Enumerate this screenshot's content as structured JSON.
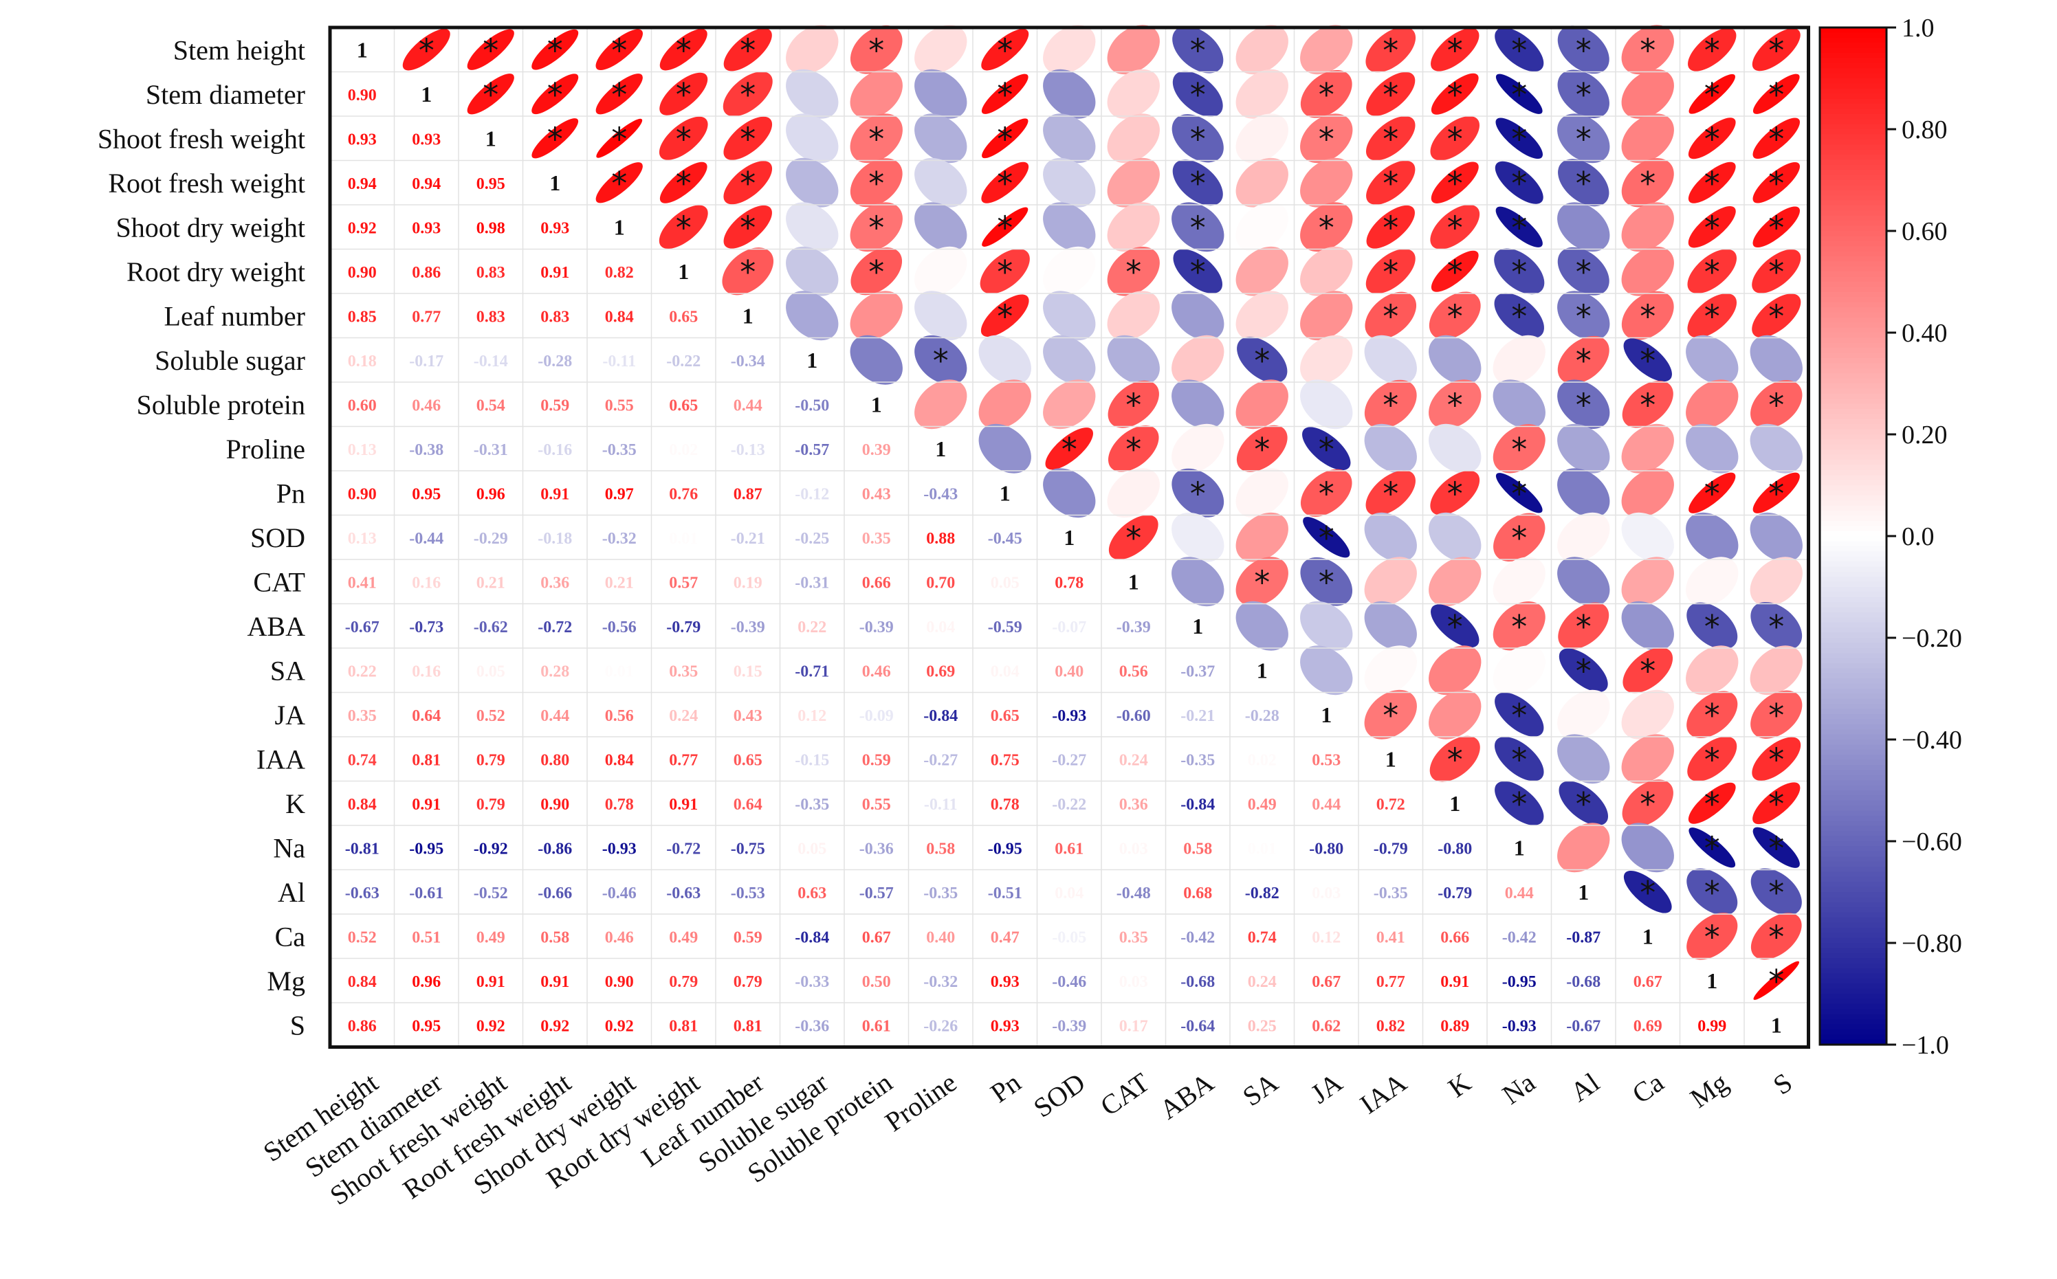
{
  "chart_data": {
    "type": "heatmap",
    "subtype": "correlation-matrix",
    "title": "",
    "variables": [
      "Stem height",
      "Stem diameter",
      "Shoot fresh weight",
      "Root fresh weight",
      "Shoot dry weight",
      "Root dry weight",
      "Leaf number",
      "Soluble sugar",
      "Soluble protein",
      "Proline",
      "Pn",
      "SOD",
      "CAT",
      "ABA",
      "SA",
      "JA",
      "IAA",
      "K",
      "Na",
      "Al",
      "Ca",
      "Mg",
      "S"
    ],
    "lower_triangle": "correlation coefficients shown as numbers",
    "upper_triangle": "ellipses colored by coefficient; asterisk marks significance",
    "diagonal_label": "1",
    "significance_marker": "*",
    "lower_values": [
      [],
      [
        "0.90"
      ],
      [
        "0.93",
        "0.93"
      ],
      [
        "0.94",
        "0.94",
        "0.95"
      ],
      [
        "0.92",
        "0.93",
        "0.98",
        "0.93"
      ],
      [
        "0.90",
        "0.86",
        "0.83",
        "0.91",
        "0.82"
      ],
      [
        "0.85",
        "0.77",
        "0.83",
        "0.83",
        "0.84",
        "0.65"
      ],
      [
        "0.18",
        "-0.17",
        "-0.14",
        "-0.28",
        "-0.11",
        "-0.22",
        "-0.34"
      ],
      [
        "0.60",
        "0.46",
        "0.54",
        "0.59",
        "0.55",
        "0.65",
        "0.44",
        "-0.50"
      ],
      [
        "0.13",
        "-0.38",
        "-0.31",
        "-0.16",
        "-0.35",
        "0.02",
        "-0.13",
        "-0.57",
        "0.39"
      ],
      [
        "0.90",
        "0.95",
        "0.96",
        "0.91",
        "0.97",
        "0.76",
        "0.87",
        "-0.12",
        "0.43",
        "-0.43"
      ],
      [
        "0.13",
        "-0.44",
        "-0.29",
        "-0.18",
        "-0.32",
        "0.01",
        "-0.21",
        "-0.25",
        "0.35",
        "0.88",
        "-0.45"
      ],
      [
        "0.41",
        "0.16",
        "0.21",
        "0.36",
        "0.21",
        "0.57",
        "0.19",
        "-0.31",
        "0.66",
        "0.70",
        "0.05",
        "0.78"
      ],
      [
        "-0.67",
        "-0.73",
        "-0.62",
        "-0.72",
        "-0.56",
        "-0.79",
        "-0.39",
        "0.22",
        "-0.39",
        "0.04",
        "-0.59",
        "-0.07",
        "-0.39"
      ],
      [
        "0.22",
        "0.16",
        "0.05",
        "0.28",
        "0.01",
        "0.35",
        "0.15",
        "-0.71",
        "0.46",
        "0.69",
        "0.04",
        "0.40",
        "0.56",
        "-0.37"
      ],
      [
        "0.35",
        "0.64",
        "0.52",
        "0.44",
        "0.56",
        "0.24",
        "0.43",
        "0.12",
        "-0.09",
        "-0.84",
        "0.65",
        "-0.93",
        "-0.60",
        "-0.21",
        "-0.28"
      ],
      [
        "0.74",
        "0.81",
        "0.79",
        "0.80",
        "0.84",
        "0.77",
        "0.65",
        "-0.15",
        "0.59",
        "-0.27",
        "0.75",
        "-0.27",
        "0.24",
        "-0.35",
        "0.02",
        "0.53"
      ],
      [
        "0.84",
        "0.91",
        "0.79",
        "0.90",
        "0.78",
        "0.91",
        "0.64",
        "-0.35",
        "0.55",
        "-0.11",
        "0.78",
        "-0.22",
        "0.36",
        "-0.84",
        "0.49",
        "0.44",
        "0.72"
      ],
      [
        "-0.81",
        "-0.95",
        "-0.92",
        "-0.86",
        "-0.93",
        "-0.72",
        "-0.75",
        "0.05",
        "-0.36",
        "0.58",
        "-0.95",
        "0.61",
        "0.03",
        "0.58",
        "0.01",
        "-0.80",
        "-0.79",
        "-0.80"
      ],
      [
        "-0.63",
        "-0.61",
        "-0.52",
        "-0.66",
        "-0.46",
        "-0.63",
        "-0.53",
        "0.63",
        "-0.57",
        "-0.35",
        "-0.51",
        "0.04",
        "-0.48",
        "0.68",
        "-0.82",
        "0.03",
        "-0.35",
        "-0.79",
        "0.44"
      ],
      [
        "0.52",
        "0.51",
        "0.49",
        "0.58",
        "0.46",
        "0.49",
        "0.59",
        "-0.84",
        "0.67",
        "0.40",
        "0.47",
        "-0.05",
        "0.35",
        "-0.42",
        "0.74",
        "0.12",
        "0.41",
        "0.66",
        "-0.42",
        "-0.87"
      ],
      [
        "0.84",
        "0.96",
        "0.91",
        "0.91",
        "0.90",
        "0.79",
        "0.79",
        "-0.33",
        "0.50",
        "-0.32",
        "0.93",
        "-0.46",
        "0.03",
        "-0.68",
        "0.24",
        "0.67",
        "0.77",
        "0.91",
        "-0.95",
        "-0.68",
        "0.67"
      ],
      [
        "0.86",
        "0.95",
        "0.92",
        "0.92",
        "0.92",
        "0.81",
        "0.81",
        "-0.36",
        "0.61",
        "-0.26",
        "0.93",
        "-0.39",
        "0.17",
        "-0.64",
        "0.25",
        "0.62",
        "0.82",
        "0.89",
        "-0.93",
        "-0.67",
        "0.69",
        "0.99"
      ]
    ],
    "significant_pairs": [
      [
        0,
        1
      ],
      [
        0,
        2
      ],
      [
        0,
        3
      ],
      [
        0,
        4
      ],
      [
        0,
        5
      ],
      [
        0,
        6
      ],
      [
        0,
        8
      ],
      [
        0,
        10
      ],
      [
        0,
        13
      ],
      [
        0,
        16
      ],
      [
        0,
        17
      ],
      [
        0,
        18
      ],
      [
        0,
        19
      ],
      [
        0,
        20
      ],
      [
        0,
        21
      ],
      [
        0,
        22
      ],
      [
        1,
        2
      ],
      [
        1,
        3
      ],
      [
        1,
        4
      ],
      [
        1,
        5
      ],
      [
        1,
        6
      ],
      [
        1,
        10
      ],
      [
        1,
        13
      ],
      [
        1,
        15
      ],
      [
        1,
        16
      ],
      [
        1,
        17
      ],
      [
        1,
        18
      ],
      [
        1,
        19
      ],
      [
        1,
        21
      ],
      [
        1,
        22
      ],
      [
        2,
        3
      ],
      [
        2,
        4
      ],
      [
        2,
        5
      ],
      [
        2,
        6
      ],
      [
        2,
        8
      ],
      [
        2,
        10
      ],
      [
        2,
        13
      ],
      [
        2,
        15
      ],
      [
        2,
        16
      ],
      [
        2,
        17
      ],
      [
        2,
        18
      ],
      [
        2,
        19
      ],
      [
        2,
        21
      ],
      [
        2,
        22
      ],
      [
        3,
        4
      ],
      [
        3,
        5
      ],
      [
        3,
        6
      ],
      [
        3,
        8
      ],
      [
        3,
        10
      ],
      [
        3,
        13
      ],
      [
        3,
        16
      ],
      [
        3,
        17
      ],
      [
        3,
        18
      ],
      [
        3,
        19
      ],
      [
        3,
        20
      ],
      [
        3,
        21
      ],
      [
        3,
        22
      ],
      [
        4,
        5
      ],
      [
        4,
        6
      ],
      [
        4,
        8
      ],
      [
        4,
        10
      ],
      [
        4,
        13
      ],
      [
        4,
        15
      ],
      [
        4,
        16
      ],
      [
        4,
        17
      ],
      [
        4,
        18
      ],
      [
        4,
        21
      ],
      [
        4,
        22
      ],
      [
        5,
        6
      ],
      [
        5,
        8
      ],
      [
        5,
        10
      ],
      [
        5,
        12
      ],
      [
        5,
        13
      ],
      [
        5,
        16
      ],
      [
        5,
        17
      ],
      [
        5,
        18
      ],
      [
        5,
        19
      ],
      [
        5,
        21
      ],
      [
        5,
        22
      ],
      [
        6,
        10
      ],
      [
        6,
        16
      ],
      [
        6,
        17
      ],
      [
        6,
        18
      ],
      [
        6,
        19
      ],
      [
        6,
        20
      ],
      [
        6,
        21
      ],
      [
        6,
        22
      ],
      [
        7,
        9
      ],
      [
        7,
        14
      ],
      [
        7,
        19
      ],
      [
        7,
        20
      ],
      [
        8,
        12
      ],
      [
        8,
        16
      ],
      [
        8,
        17
      ],
      [
        8,
        19
      ],
      [
        8,
        20
      ],
      [
        8,
        22
      ],
      [
        9,
        11
      ],
      [
        9,
        12
      ],
      [
        9,
        14
      ],
      [
        9,
        15
      ],
      [
        9,
        18
      ],
      [
        10,
        13
      ],
      [
        10,
        15
      ],
      [
        10,
        16
      ],
      [
        10,
        17
      ],
      [
        10,
        18
      ],
      [
        10,
        21
      ],
      [
        10,
        22
      ],
      [
        11,
        12
      ],
      [
        11,
        15
      ],
      [
        11,
        18
      ],
      [
        12,
        14
      ],
      [
        12,
        15
      ],
      [
        13,
        17
      ],
      [
        13,
        18
      ],
      [
        13,
        19
      ],
      [
        13,
        21
      ],
      [
        13,
        22
      ],
      [
        14,
        19
      ],
      [
        14,
        20
      ],
      [
        15,
        16
      ],
      [
        15,
        18
      ],
      [
        15,
        21
      ],
      [
        15,
        22
      ],
      [
        16,
        17
      ],
      [
        16,
        18
      ],
      [
        16,
        21
      ],
      [
        16,
        22
      ],
      [
        17,
        18
      ],
      [
        17,
        19
      ],
      [
        17,
        20
      ],
      [
        17,
        21
      ],
      [
        17,
        22
      ],
      [
        18,
        21
      ],
      [
        18,
        22
      ],
      [
        19,
        20
      ],
      [
        19,
        21
      ],
      [
        19,
        22
      ],
      [
        20,
        21
      ],
      [
        20,
        22
      ],
      [
        21,
        22
      ]
    ],
    "colorbar": {
      "min": -1.0,
      "max": 1.0,
      "tick_labels": [
        "1.0",
        "0.80",
        "0.60",
        "0.40",
        "0.20",
        "0.0",
        "−0.20",
        "−0.40",
        "−0.60",
        "−0.80",
        "−1.0"
      ],
      "low_color": "#00008b",
      "mid_color": "#ffffff",
      "high_color": "#ff0000"
    }
  }
}
